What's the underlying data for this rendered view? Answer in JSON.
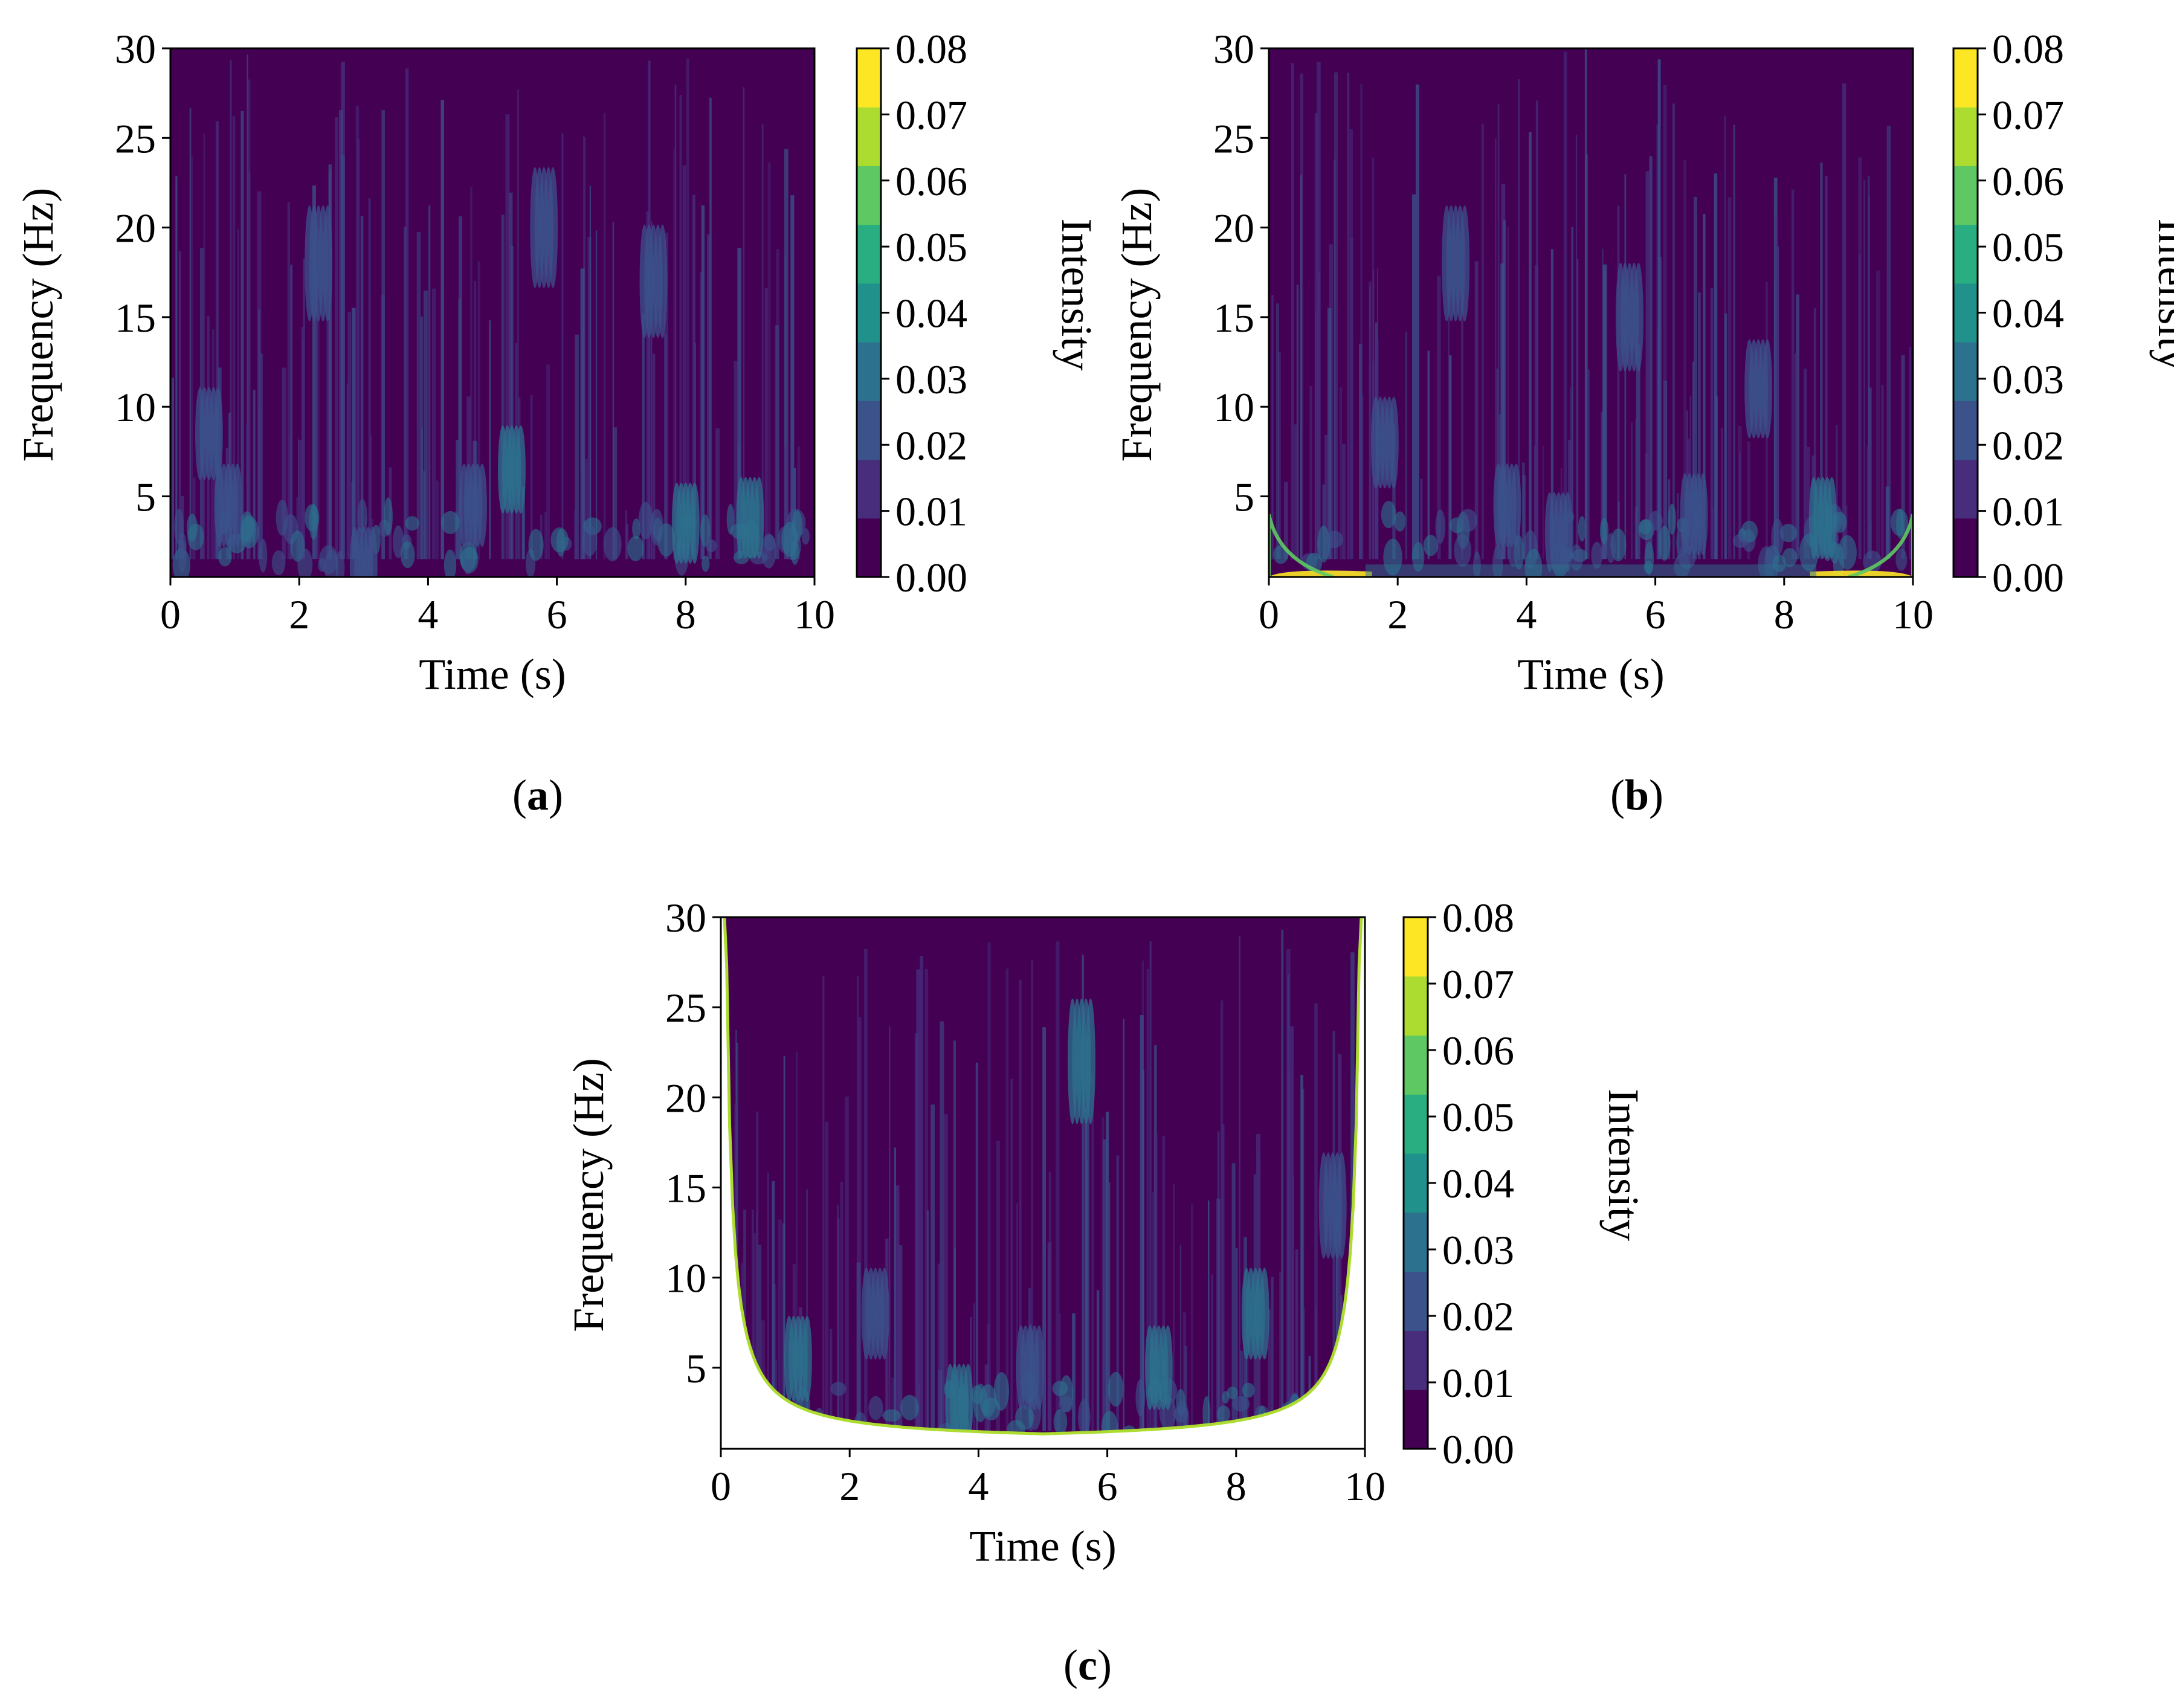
{
  "chart_data": [
    {
      "panel": "a",
      "type": "heatmap",
      "panel_label": "a",
      "xlabel": "Time (s)",
      "ylabel": "Frequency (Hz)",
      "colorbar_label": "Intensity",
      "xlim": [
        0,
        10
      ],
      "ylim": [
        0.5,
        30
      ],
      "x_ticks": [
        0,
        2,
        4,
        6,
        8,
        10
      ],
      "y_ticks": [
        5,
        10,
        15,
        20,
        25,
        30
      ],
      "colorbar_ticks": [
        "0.00",
        "0.01",
        "0.02",
        "0.03",
        "0.04",
        "0.05",
        "0.06",
        "0.07",
        "0.08"
      ],
      "colorbar_range": [
        0,
        0.08
      ],
      "colormap": [
        "#440154",
        "#472d7b",
        "#3b528b",
        "#2c728e",
        "#21918c",
        "#28ae80",
        "#5ec962",
        "#addc30",
        "#fde725"
      ],
      "cone_of_influence": false,
      "edge_artifact": "none",
      "hotspots": [
        {
          "t": 0.6,
          "f": 8.5,
          "v": 0.02
        },
        {
          "t": 2.3,
          "f": 18,
          "v": 0.02
        },
        {
          "t": 4.7,
          "f": 4.5,
          "v": 0.025
        },
        {
          "t": 5.3,
          "f": 6.5,
          "v": 0.03
        },
        {
          "t": 5.8,
          "f": 20,
          "v": 0.02
        },
        {
          "t": 7.5,
          "f": 17,
          "v": 0.02
        },
        {
          "t": 8.0,
          "f": 3.5,
          "v": 0.03
        },
        {
          "t": 9.0,
          "f": 3.8,
          "v": 0.03
        },
        {
          "t": 3.0,
          "f": 1.2,
          "v": 0.02
        },
        {
          "t": 0.9,
          "f": 4.5,
          "v": 0.02
        }
      ]
    },
    {
      "panel": "b",
      "type": "heatmap",
      "panel_label": "b",
      "xlabel": "Time (s)",
      "ylabel": "Frequency (Hz)",
      "colorbar_label": "Intensity",
      "xlim": [
        0,
        10
      ],
      "ylim": [
        0.5,
        30
      ],
      "x_ticks": [
        0,
        2,
        4,
        6,
        8,
        10
      ],
      "y_ticks": [
        5,
        10,
        15,
        20,
        25,
        30
      ],
      "colorbar_ticks": [
        "0.00",
        "0.01",
        "0.02",
        "0.03",
        "0.04",
        "0.05",
        "0.06",
        "0.07",
        "0.08"
      ],
      "colorbar_range": [
        0,
        0.08
      ],
      "colormap": [
        "#440154",
        "#472d7b",
        "#3b528b",
        "#2c728e",
        "#21918c",
        "#28ae80",
        "#5ec962",
        "#addc30",
        "#fde725"
      ],
      "cone_of_influence": false,
      "edge_artifact": "bright at lowest frequencies near t=0 and t=10 (up to 0.08)",
      "hotspots": [
        {
          "t": 1.8,
          "f": 8,
          "v": 0.02
        },
        {
          "t": 2.9,
          "f": 18,
          "v": 0.02
        },
        {
          "t": 3.7,
          "f": 4.5,
          "v": 0.025
        },
        {
          "t": 5.6,
          "f": 15,
          "v": 0.02
        },
        {
          "t": 7.6,
          "f": 11,
          "v": 0.025
        },
        {
          "t": 8.6,
          "f": 3.8,
          "v": 0.03
        },
        {
          "t": 6.6,
          "f": 4,
          "v": 0.025
        },
        {
          "t": 4.5,
          "f": 3,
          "v": 0.02
        }
      ]
    },
    {
      "panel": "c",
      "type": "heatmap",
      "panel_label": "c",
      "xlabel": "Time (s)",
      "ylabel": "Frequency (Hz)",
      "colorbar_label": "Intensity",
      "xlim": [
        0,
        10
      ],
      "ylim": [
        0.5,
        30
      ],
      "x_ticks": [
        0,
        2,
        4,
        6,
        8,
        10
      ],
      "y_ticks": [
        5,
        10,
        15,
        20,
        25,
        30
      ],
      "colorbar_ticks": [
        "0.00",
        "0.01",
        "0.02",
        "0.03",
        "0.04",
        "0.05",
        "0.06",
        "0.07",
        "0.08"
      ],
      "colorbar_range": [
        0,
        0.08
      ],
      "colormap": [
        "#440154",
        "#472d7b",
        "#3b528b",
        "#2c728e",
        "#21918c",
        "#28ae80",
        "#5ec962",
        "#addc30",
        "#fde725"
      ],
      "cone_of_influence": true,
      "edge_artifact": "green-yellow rim along the cone-of-influence boundary; region outside the cone is blank",
      "hotspots": [
        {
          "t": 1.2,
          "f": 5.5,
          "v": 0.035
        },
        {
          "t": 2.4,
          "f": 8,
          "v": 0.025
        },
        {
          "t": 5.6,
          "f": 22,
          "v": 0.03
        },
        {
          "t": 6.8,
          "f": 5,
          "v": 0.035
        },
        {
          "t": 8.3,
          "f": 8,
          "v": 0.03
        },
        {
          "t": 9.5,
          "f": 14,
          "v": 0.025
        },
        {
          "t": 3.7,
          "f": 3,
          "v": 0.03
        },
        {
          "t": 4.8,
          "f": 5,
          "v": 0.025
        }
      ]
    }
  ]
}
